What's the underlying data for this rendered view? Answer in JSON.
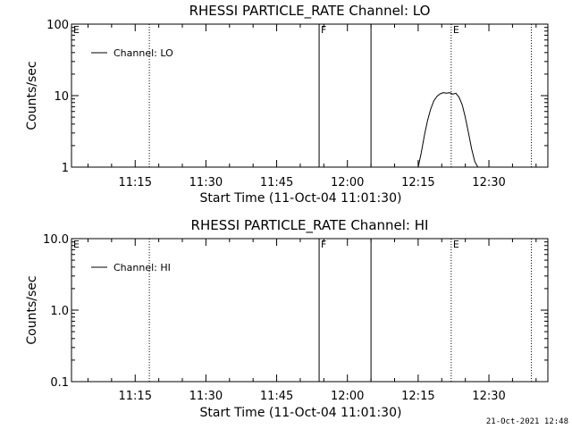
{
  "footer": {
    "timestamp": "21-Oct-2021 12:48"
  },
  "chart_data": [
    {
      "type": "line",
      "title": "RHESSI PARTICLE_RATE Channel: LO",
      "xlabel": "Start Time (11-Oct-04 11:01:30)",
      "ylabel": "Counts/sec",
      "yscale": "log",
      "ylim": [
        1,
        100
      ],
      "yticks": [
        1,
        10,
        100
      ],
      "ytick_labels": [
        "1",
        "10",
        "100"
      ],
      "xlim": [
        "11:01:30",
        "12:42:30"
      ],
      "xticks": [
        "11:15",
        "11:30",
        "11:45",
        "12:00",
        "12:15",
        "12:30"
      ],
      "legend": {
        "label": "Channel: LO",
        "position": "top-left"
      },
      "markers": [
        {
          "time": "11:18:00",
          "style": "dotted",
          "label": ""
        },
        {
          "time": "11:54:00",
          "style": "solid",
          "label": "F"
        },
        {
          "time": "12:05:00",
          "style": "solid",
          "label": ""
        },
        {
          "time": "12:22:00",
          "style": "dotted",
          "label": "E"
        },
        {
          "time": "12:39:00",
          "style": "dotted",
          "label": ""
        }
      ],
      "edge_label": "E",
      "series": [
        {
          "name": "Channel: LO",
          "x": [
            "12:15:00",
            "12:15:40",
            "12:16:20",
            "12:17:00",
            "12:17:40",
            "12:18:20",
            "12:19:00",
            "12:19:40",
            "12:20:20",
            "12:21:00",
            "12:21:40",
            "12:22:20",
            "12:23:00",
            "12:23:40",
            "12:24:20",
            "12:25:00",
            "12:25:40",
            "12:26:20",
            "12:27:00",
            "12:27:40"
          ],
          "values": [
            1.0,
            1.6,
            2.8,
            4.5,
            6.5,
            8.5,
            9.8,
            10.6,
            11.0,
            10.8,
            11.0,
            10.5,
            10.8,
            9.5,
            7.5,
            5.0,
            3.0,
            1.8,
            1.2,
            1.0
          ]
        }
      ]
    },
    {
      "type": "line",
      "title": "RHESSI PARTICLE_RATE Channel: HI",
      "xlabel": "Start Time (11-Oct-04 11:01:30)",
      "ylabel": "Counts/sec",
      "yscale": "log",
      "ylim": [
        0.1,
        10
      ],
      "yticks": [
        0.1,
        1,
        10
      ],
      "ytick_labels": [
        "0.1",
        "1.0",
        "10.0"
      ],
      "xlim": [
        "11:01:30",
        "12:42:30"
      ],
      "xticks": [
        "11:15",
        "11:30",
        "11:45",
        "12:00",
        "12:15",
        "12:30"
      ],
      "legend": {
        "label": "Channel: HI",
        "position": "top-left"
      },
      "markers": [
        {
          "time": "11:18:00",
          "style": "dotted",
          "label": ""
        },
        {
          "time": "11:54:00",
          "style": "solid",
          "label": "F"
        },
        {
          "time": "12:05:00",
          "style": "solid",
          "label": ""
        },
        {
          "time": "12:22:00",
          "style": "dotted",
          "label": "E"
        },
        {
          "time": "12:39:00",
          "style": "dotted",
          "label": ""
        }
      ],
      "edge_label": "E",
      "series": [
        {
          "name": "Channel: HI",
          "x": [],
          "values": []
        }
      ]
    }
  ]
}
